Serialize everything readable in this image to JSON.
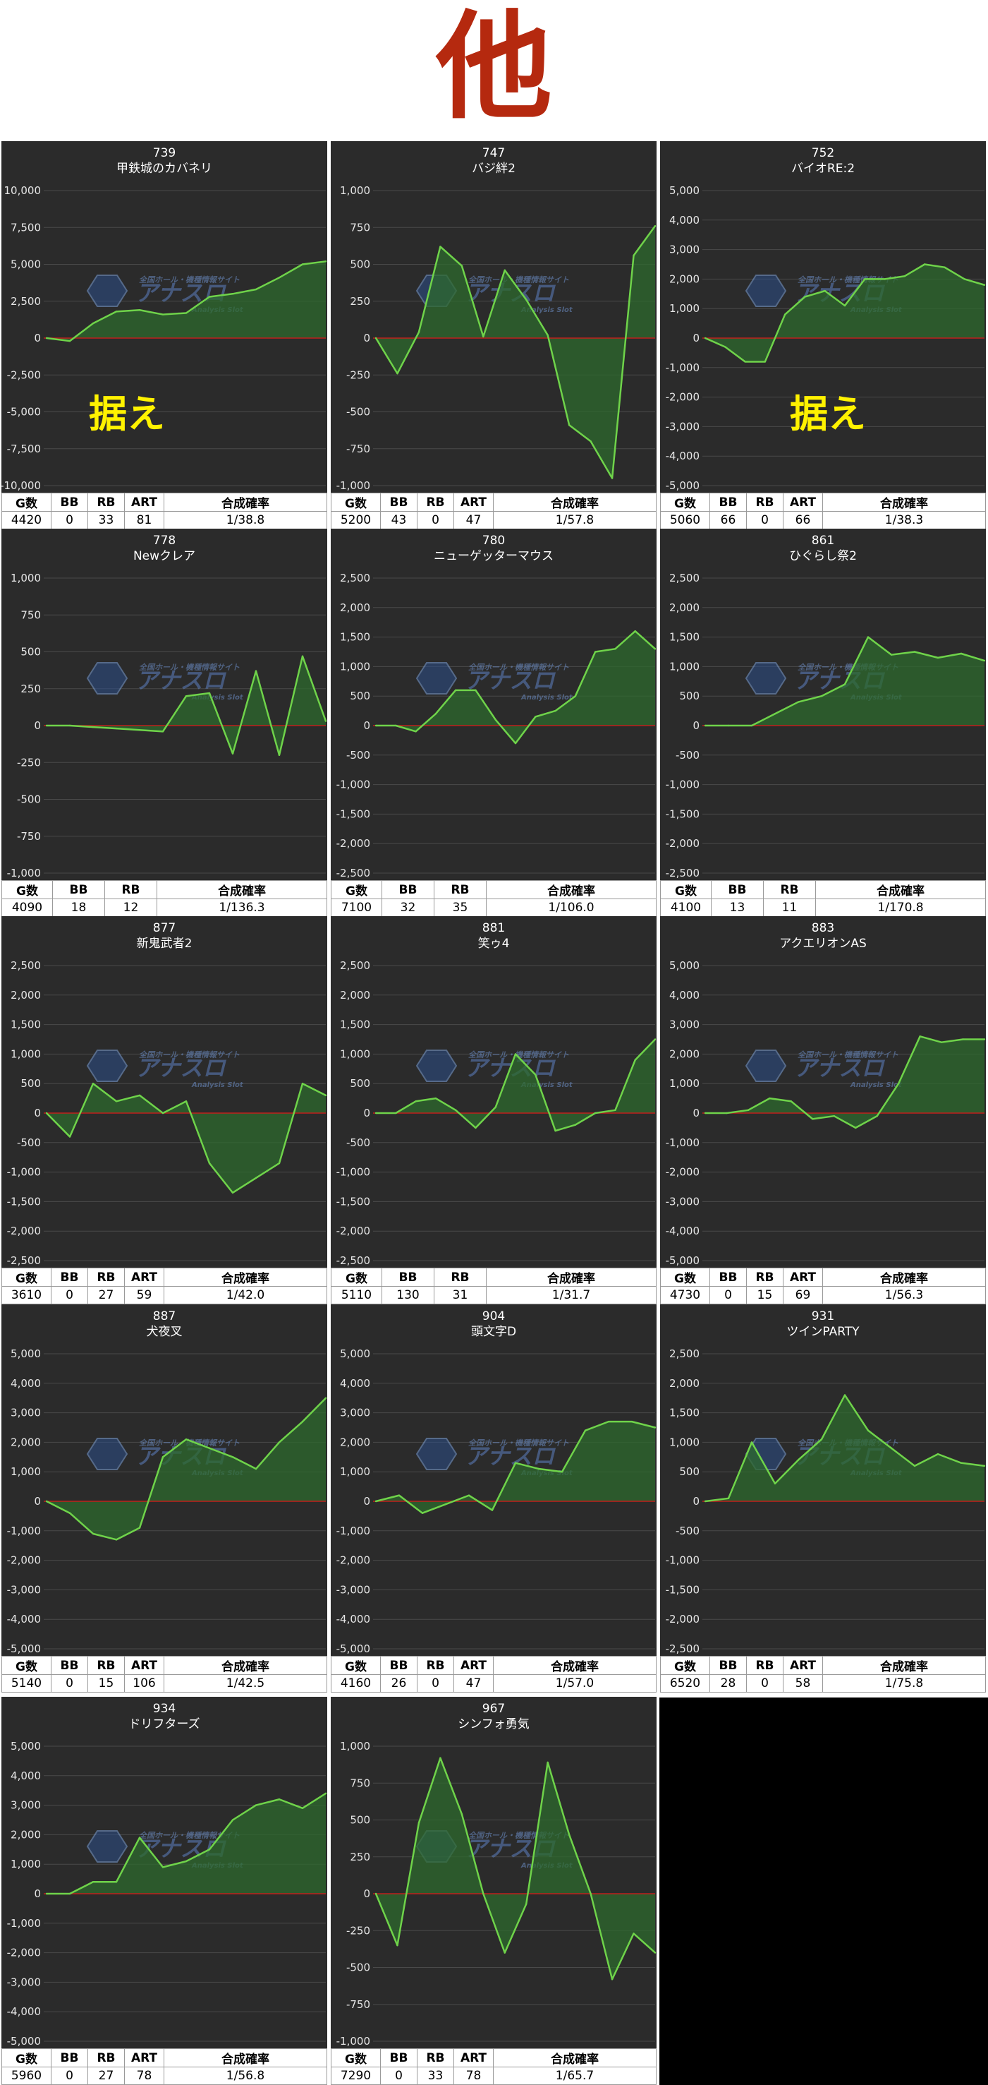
{
  "page_title": "他",
  "stat_headers": {
    "g": "G数",
    "bb": "BB",
    "rb": "RB",
    "art": "ART",
    "rate": "合成確率"
  },
  "chart_data": [
    {
      "type": "area",
      "number": "739",
      "name": "甲鉄城のカバネリ",
      "yticks": [
        10000,
        7500,
        5000,
        2500,
        0,
        -2500,
        -5000,
        -7500,
        -10000
      ],
      "ylim": [
        -10000,
        10000
      ],
      "values": [
        0,
        -200,
        1000,
        1800,
        1900,
        1600,
        1700,
        2800,
        3000,
        3300,
        4100,
        5000,
        5200
      ],
      "overlay_text": "据え",
      "stats": {
        "g": "4420",
        "bb": "0",
        "rb": "33",
        "art": "81",
        "rate": "1/38.8"
      },
      "has_art": true
    },
    {
      "type": "area",
      "number": "747",
      "name": "バジ絆2",
      "yticks": [
        1000,
        750,
        500,
        250,
        0,
        -250,
        -500,
        -750,
        -1000
      ],
      "ylim": [
        -1000,
        1000
      ],
      "values": [
        0,
        -240,
        40,
        620,
        490,
        10,
        460,
        260,
        20,
        -590,
        -700,
        -950,
        560,
        760
      ],
      "overlay_text": "",
      "stats": {
        "g": "5200",
        "bb": "43",
        "rb": "0",
        "art": "47",
        "rate": "1/57.8"
      },
      "has_art": true
    },
    {
      "type": "area",
      "number": "752",
      "name": "バイオRE:2",
      "yticks": [
        5000,
        4000,
        3000,
        2000,
        1000,
        0,
        -1000,
        -2000,
        -3000,
        -4000,
        -5000
      ],
      "ylim": [
        -5000,
        5000
      ],
      "values": [
        0,
        -300,
        -800,
        -800,
        800,
        1400,
        1600,
        1100,
        2000,
        2000,
        2100,
        2500,
        2400,
        2000,
        1800
      ],
      "overlay_text": "据え",
      "stats": {
        "g": "5060",
        "bb": "66",
        "rb": "0",
        "art": "66",
        "rate": "1/38.3"
      },
      "has_art": true
    },
    {
      "type": "area",
      "number": "778",
      "name": "Newクレア",
      "yticks": [
        1000,
        750,
        500,
        250,
        0,
        -250,
        -500,
        -750,
        -1000
      ],
      "ylim": [
        -1000,
        1000
      ],
      "values": [
        0,
        0,
        -10,
        -20,
        -30,
        -40,
        200,
        220,
        -190,
        370,
        -200,
        470,
        30
      ],
      "overlay_text": "",
      "stats": {
        "g": "4090",
        "bb": "18",
        "rb": "12",
        "art": "",
        "rate": "1/136.3"
      },
      "has_art": false
    },
    {
      "type": "area",
      "number": "780",
      "name": "ニューゲッターマウス",
      "yticks": [
        2500,
        2000,
        1500,
        1000,
        500,
        0,
        -500,
        -1000,
        -1500,
        -2000,
        -2500
      ],
      "ylim": [
        -2500,
        2500
      ],
      "values": [
        0,
        0,
        -100,
        200,
        600,
        600,
        100,
        -300,
        150,
        250,
        500,
        1250,
        1300,
        1600,
        1300
      ],
      "overlay_text": "",
      "stats": {
        "g": "7100",
        "bb": "32",
        "rb": "35",
        "art": "",
        "rate": "1/106.0"
      },
      "has_art": false
    },
    {
      "type": "area",
      "number": "861",
      "name": "ひぐらし祭2",
      "yticks": [
        2500,
        2000,
        1500,
        1000,
        500,
        0,
        -500,
        -1000,
        -1500,
        -2000,
        -2500
      ],
      "ylim": [
        -2500,
        2500
      ],
      "values": [
        0,
        0,
        0,
        200,
        400,
        500,
        700,
        1500,
        1200,
        1250,
        1150,
        1220,
        1100
      ],
      "overlay_text": "",
      "stats": {
        "g": "4100",
        "bb": "13",
        "rb": "11",
        "art": "",
        "rate": "1/170.8"
      },
      "has_art": false
    },
    {
      "type": "area",
      "number": "877",
      "name": "新鬼武者2",
      "yticks": [
        2500,
        2000,
        1500,
        1000,
        500,
        0,
        -500,
        -1000,
        -1500,
        -2000,
        -2500
      ],
      "ylim": [
        -2500,
        2500
      ],
      "values": [
        0,
        -400,
        500,
        200,
        300,
        0,
        200,
        -850,
        -1350,
        -1100,
        -850,
        500,
        300
      ],
      "overlay_text": "",
      "stats": {
        "g": "3610",
        "bb": "0",
        "rb": "27",
        "art": "59",
        "rate": "1/42.0"
      },
      "has_art": true
    },
    {
      "type": "area",
      "number": "881",
      "name": "笑ゥ4",
      "yticks": [
        2500,
        2000,
        1500,
        1000,
        500,
        0,
        -500,
        -1000,
        -1500,
        -2000,
        -2500
      ],
      "ylim": [
        -2500,
        2500
      ],
      "values": [
        0,
        0,
        200,
        250,
        50,
        -250,
        100,
        1000,
        650,
        -300,
        -200,
        0,
        50,
        900,
        1250
      ],
      "overlay_text": "",
      "stats": {
        "g": "5110",
        "bb": "130",
        "rb": "31",
        "art": "",
        "rate": "1/31.7"
      },
      "has_art": false
    },
    {
      "type": "area",
      "number": "883",
      "name": "アクエリオンAS",
      "yticks": [
        5000,
        4000,
        3000,
        2000,
        1000,
        0,
        -1000,
        -2000,
        -3000,
        -4000,
        -5000
      ],
      "ylim": [
        -5000,
        5000
      ],
      "values": [
        0,
        0,
        100,
        500,
        400,
        -200,
        -100,
        -500,
        -100,
        1000,
        2600,
        2400,
        2500,
        2500
      ],
      "overlay_text": "",
      "stats": {
        "g": "4730",
        "bb": "0",
        "rb": "15",
        "art": "69",
        "rate": "1/56.3"
      },
      "has_art": true
    },
    {
      "type": "area",
      "number": "887",
      "name": "犬夜叉",
      "yticks": [
        5000,
        4000,
        3000,
        2000,
        1000,
        0,
        -1000,
        -2000,
        -3000,
        -4000,
        -5000
      ],
      "ylim": [
        -5000,
        5000
      ],
      "values": [
        0,
        -400,
        -1100,
        -1300,
        -900,
        1500,
        2100,
        1800,
        1500,
        1100,
        2000,
        2700,
        3500
      ],
      "overlay_text": "",
      "stats": {
        "g": "5140",
        "bb": "0",
        "rb": "15",
        "art": "106",
        "rate": "1/42.5"
      },
      "has_art": true
    },
    {
      "type": "area",
      "number": "904",
      "name": "頭文字D",
      "yticks": [
        5000,
        4000,
        3000,
        2000,
        1000,
        0,
        -1000,
        -2000,
        -3000,
        -4000,
        -5000
      ],
      "ylim": [
        -5000,
        5000
      ],
      "values": [
        0,
        200,
        -400,
        -100,
        200,
        -300,
        1300,
        1100,
        1000,
        2400,
        2700,
        2700,
        2500
      ],
      "overlay_text": "",
      "stats": {
        "g": "4160",
        "bb": "26",
        "rb": "0",
        "art": "47",
        "rate": "1/57.0"
      },
      "has_art": true
    },
    {
      "type": "area",
      "number": "931",
      "name": "ツインPARTY",
      "yticks": [
        2500,
        2000,
        1500,
        1000,
        500,
        0,
        -500,
        -1000,
        -1500,
        -2000,
        -2500
      ],
      "ylim": [
        -2500,
        2500
      ],
      "values": [
        0,
        50,
        1000,
        300,
        700,
        1050,
        1800,
        1200,
        900,
        600,
        800,
        650,
        600
      ],
      "overlay_text": "",
      "stats": {
        "g": "6520",
        "bb": "28",
        "rb": "0",
        "art": "58",
        "rate": "1/75.8"
      },
      "has_art": true
    },
    {
      "type": "area",
      "number": "934",
      "name": "ドリフターズ",
      "yticks": [
        5000,
        4000,
        3000,
        2000,
        1000,
        0,
        -1000,
        -2000,
        -3000,
        -4000,
        -5000
      ],
      "ylim": [
        -5000,
        5000
      ],
      "values": [
        0,
        0,
        400,
        400,
        1900,
        900,
        1100,
        1500,
        2500,
        3000,
        3200,
        2900,
        3400
      ],
      "overlay_text": "",
      "stats": {
        "g": "5960",
        "bb": "0",
        "rb": "27",
        "art": "78",
        "rate": "1/56.8"
      },
      "has_art": true
    },
    {
      "type": "area",
      "number": "967",
      "name": "シンフォ勇気",
      "yticks": [
        1000,
        750,
        500,
        250,
        0,
        -250,
        -500,
        -750,
        -1000
      ],
      "ylim": [
        -1000,
        1000
      ],
      "values": [
        0,
        -350,
        480,
        920,
        540,
        0,
        -400,
        -70,
        890,
        400,
        0,
        -580,
        -270,
        -400
      ],
      "overlay_text": "",
      "stats": {
        "g": "7290",
        "bb": "0",
        "rb": "33",
        "art": "78",
        "rate": "1/65.7"
      },
      "has_art": true
    }
  ],
  "watermark": {
    "top": "全国ホール・機種情報サイト",
    "main": "アナスロ",
    "sub": "Analysis Slot"
  },
  "colors": {
    "panel_bg": "#2b2b2b",
    "grid": "#4a4a4a",
    "line": "#6fd34a",
    "fill": "#2e6a2e",
    "zero_line": "#c0201c",
    "title": "#b5290f",
    "overlay": "#fff200",
    "empty_cell": "#000000"
  }
}
